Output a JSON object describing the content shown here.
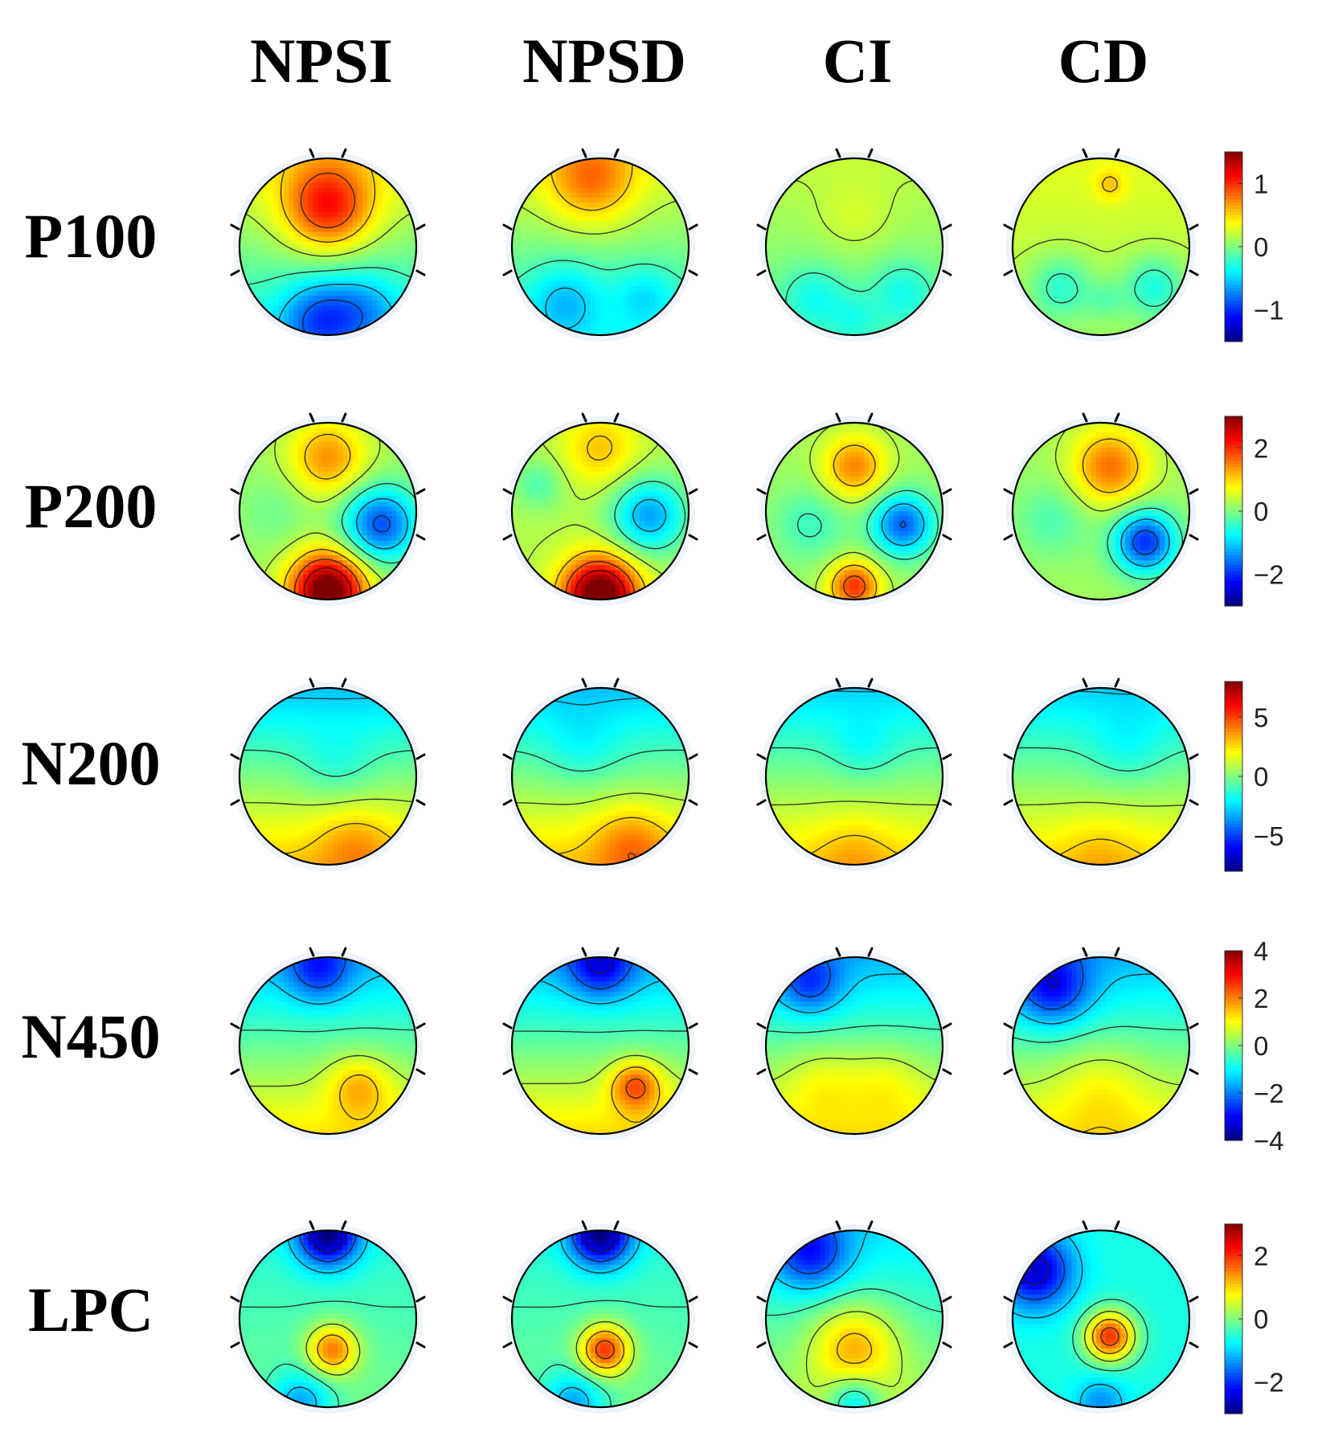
{
  "figure": {
    "columns": [
      "NPSI",
      "NPSD",
      "CI",
      "CD"
    ],
    "rows": [
      "P100",
      "P200",
      "N200",
      "N450",
      "LPC"
    ]
  },
  "colorbars": [
    {
      "row": "P100",
      "ticks": [
        "1",
        "0",
        "−1"
      ],
      "tick_values": [
        1,
        0,
        -1
      ],
      "range": [
        -1.5,
        1.5
      ]
    },
    {
      "row": "P200",
      "ticks": [
        "2",
        "0",
        "−2"
      ],
      "tick_values": [
        2,
        0,
        -2
      ],
      "range": [
        -3,
        3
      ]
    },
    {
      "row": "N200",
      "ticks": [
        "5",
        "0",
        "−5"
      ],
      "tick_values": [
        5,
        0,
        -5
      ],
      "range": [
        -8,
        8
      ]
    },
    {
      "row": "N450",
      "ticks": [
        "4",
        "2",
        "0",
        "−2",
        "−4"
      ],
      "tick_values": [
        4,
        2,
        0,
        -2,
        -4
      ],
      "range": [
        -4,
        4
      ]
    },
    {
      "row": "LPC",
      "ticks": [
        "2",
        "0",
        "−2"
      ],
      "tick_values": [
        2,
        0,
        -2
      ],
      "range": [
        -3,
        3
      ]
    }
  ],
  "colormap": [
    "#00007f",
    "#0000ff",
    "#007fff",
    "#00ffff",
    "#7fff7f",
    "#ffff00",
    "#ff7f00",
    "#ff0000",
    "#7f0000"
  ],
  "maps": [
    [
      {
        "base": 0.0,
        "grad_y": -0.75,
        "grad_x": 0.0,
        "blobs": [
          [
            0.0,
            -0.45,
            0.35,
            0.95
          ],
          [
            -0.1,
            0.8,
            0.3,
            -0.6
          ],
          [
            0.4,
            0.7,
            0.3,
            -0.4
          ]
        ]
      },
      {
        "base": 0.0,
        "grad_y": -0.6,
        "grad_x": 0.0,
        "blobs": [
          [
            -0.1,
            -0.75,
            0.35,
            0.6
          ],
          [
            0.5,
            0.55,
            0.25,
            -0.3
          ],
          [
            -0.4,
            0.6,
            0.3,
            -0.4
          ]
        ]
      },
      {
        "base": 0.05,
        "grad_y": -0.3,
        "grad_x": 0.0,
        "blobs": [
          [
            0.0,
            -0.3,
            0.3,
            0.15
          ],
          [
            -0.45,
            0.55,
            0.25,
            -0.3
          ],
          [
            0.55,
            0.5,
            0.25,
            -0.3
          ],
          [
            0.0,
            0.8,
            0.2,
            -0.2
          ]
        ]
      },
      {
        "base": 0.2,
        "grad_y": -0.2,
        "grad_x": 0.0,
        "blobs": [
          [
            0.1,
            -0.7,
            0.12,
            0.3
          ],
          [
            -0.45,
            0.45,
            0.25,
            -0.4
          ],
          [
            0.6,
            0.45,
            0.25,
            -0.45
          ],
          [
            0.05,
            0.6,
            0.15,
            -0.2
          ]
        ]
      }
    ],
    [
      {
        "base": 0.2,
        "grad_y": 0.0,
        "grad_x": 0.0,
        "blobs": [
          [
            0.0,
            -0.6,
            0.3,
            1.2
          ],
          [
            0.6,
            0.15,
            0.3,
            -2.0
          ],
          [
            0.0,
            0.9,
            0.3,
            3.2
          ],
          [
            -0.6,
            0.0,
            0.3,
            -0.3
          ]
        ]
      },
      {
        "base": 0.3,
        "grad_y": 0.0,
        "grad_x": 0.0,
        "blobs": [
          [
            0.0,
            -0.7,
            0.3,
            0.8
          ],
          [
            0.55,
            0.05,
            0.3,
            -1.6
          ],
          [
            0.0,
            0.95,
            0.3,
            3.2
          ],
          [
            -0.7,
            -0.3,
            0.2,
            -0.6
          ]
        ]
      },
      {
        "base": 0.2,
        "grad_y": 0.0,
        "grad_x": 0.0,
        "blobs": [
          [
            0.0,
            -0.5,
            0.25,
            1.3
          ],
          [
            0.55,
            0.15,
            0.25,
            -1.9
          ],
          [
            0.0,
            0.85,
            0.2,
            1.8
          ],
          [
            -0.5,
            0.15,
            0.3,
            -0.6
          ]
        ]
      },
      {
        "base": 0.2,
        "grad_y": 0.0,
        "grad_x": 0.0,
        "blobs": [
          [
            0.1,
            -0.5,
            0.3,
            1.4
          ],
          [
            0.5,
            0.35,
            0.25,
            -2.2
          ],
          [
            -0.55,
            0.1,
            0.3,
            -0.5
          ]
        ]
      }
    ],
    [
      {
        "base": 0.0,
        "grad_y": 6.0,
        "grad_x": 0.0,
        "blobs": [
          [
            0.3,
            0.75,
            0.3,
            1.5
          ],
          [
            0.1,
            -0.1,
            0.3,
            -1.0
          ]
        ]
      },
      {
        "base": 0.0,
        "grad_y": 6.0,
        "grad_x": 0.0,
        "blobs": [
          [
            0.35,
            0.75,
            0.3,
            2.0
          ],
          [
            -0.2,
            -0.3,
            0.3,
            -1.0
          ]
        ]
      },
      {
        "base": 0.0,
        "grad_y": 5.5,
        "grad_x": 0.0,
        "blobs": [
          [
            0.1,
            -0.3,
            0.25,
            -1.0
          ],
          [
            0.0,
            0.85,
            0.3,
            1.0
          ]
        ]
      },
      {
        "base": 0.0,
        "grad_y": 5.5,
        "grad_x": 0.0,
        "blobs": [
          [
            0.3,
            -0.3,
            0.3,
            -1.0
          ],
          [
            0.0,
            0.85,
            0.3,
            0.8
          ]
        ]
      }
    ],
    [
      {
        "base": -0.2,
        "grad_y": 2.8,
        "grad_x": 0.0,
        "blobs": [
          [
            -0.1,
            -0.85,
            0.25,
            -1.5
          ],
          [
            0.35,
            0.45,
            0.25,
            1.2
          ]
        ]
      },
      {
        "base": -0.2,
        "grad_y": 3.0,
        "grad_x": 0.0,
        "blobs": [
          [
            0.0,
            -0.9,
            0.25,
            -1.8
          ],
          [
            0.4,
            0.45,
            0.2,
            2.0
          ]
        ]
      },
      {
        "base": -0.2,
        "grad_y": 2.8,
        "grad_x": 0.0,
        "blobs": [
          [
            -0.5,
            -0.7,
            0.25,
            -1.5
          ],
          [
            -0.35,
            0.4,
            0.3,
            0.6
          ],
          [
            0.35,
            0.4,
            0.3,
            0.6
          ]
        ]
      },
      {
        "base": -0.2,
        "grad_y": 2.8,
        "grad_x": 0.0,
        "blobs": [
          [
            -0.55,
            -0.65,
            0.3,
            -2.0
          ],
          [
            0.0,
            0.45,
            0.35,
            0.6
          ]
        ]
      }
    ],
    [
      {
        "base": -0.3,
        "grad_y": 0.5,
        "grad_x": 0.0,
        "blobs": [
          [
            0.05,
            0.35,
            0.2,
            1.8
          ],
          [
            0.0,
            -0.95,
            0.25,
            -2.5
          ],
          [
            -0.3,
            0.95,
            0.25,
            -1.2
          ]
        ]
      },
      {
        "base": -0.3,
        "grad_y": 0.5,
        "grad_x": 0.0,
        "blobs": [
          [
            0.05,
            0.35,
            0.2,
            2.2
          ],
          [
            0.0,
            -0.95,
            0.25,
            -2.5
          ],
          [
            -0.3,
            0.95,
            0.25,
            -1.2
          ]
        ]
      },
      {
        "base": -0.3,
        "grad_y": 1.2,
        "grad_x": 0.0,
        "blobs": [
          [
            0.0,
            0.3,
            0.35,
            1.3
          ],
          [
            -0.5,
            -0.75,
            0.3,
            -1.5
          ],
          [
            0.0,
            0.95,
            0.2,
            -1.2
          ]
        ]
      },
      {
        "base": -0.6,
        "grad_y": 0.0,
        "grad_x": 0.0,
        "blobs": [
          [
            0.1,
            0.2,
            0.2,
            2.6
          ],
          [
            -0.75,
            -0.55,
            0.3,
            -2.0
          ],
          [
            0.0,
            0.95,
            0.2,
            -0.8
          ]
        ]
      }
    ]
  ]
}
